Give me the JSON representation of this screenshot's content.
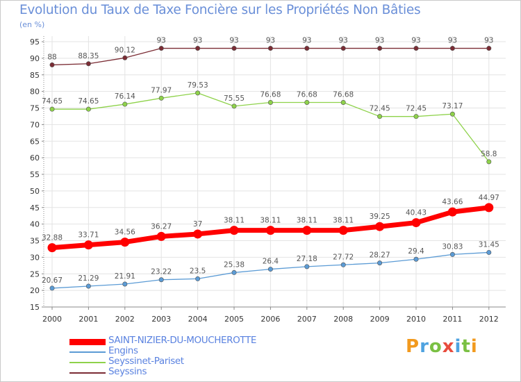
{
  "chart_data": {
    "type": "line",
    "title": "Evolution du Taux de Taxe Foncière sur les Propriétés Non Bâties",
    "subtitle": "(en %)",
    "xlabel": "",
    "ylabel": "",
    "x": [
      2000,
      2001,
      2002,
      2003,
      2004,
      2005,
      2006,
      2007,
      2008,
      2009,
      2010,
      2011,
      2012
    ],
    "ylim": [
      15,
      95
    ],
    "yticks": [
      15,
      20,
      25,
      30,
      35,
      40,
      45,
      50,
      55,
      60,
      65,
      70,
      75,
      80,
      85,
      90,
      95
    ],
    "grid": true,
    "legend_position": "bottom-left",
    "series": [
      {
        "name": "SAINT-NIZIER-DU-MOUCHEROTTE",
        "color": "#ff0000",
        "values": [
          32.88,
          33.71,
          34.56,
          36.27,
          37,
          38.11,
          38.11,
          38.11,
          38.11,
          39.25,
          40.43,
          43.66,
          44.97
        ],
        "labels": [
          "32.88",
          "33.71",
          "34.56",
          "36.27",
          "37",
          "38.11",
          "38.11",
          "38.11",
          "38.11",
          "39.25",
          "40.43",
          "43.66",
          "44.97"
        ]
      },
      {
        "name": "Engins",
        "color": "#5b9bd5",
        "values": [
          20.67,
          21.29,
          21.91,
          23.22,
          23.5,
          25.38,
          26.4,
          27.18,
          27.72,
          28.27,
          29.4,
          30.83,
          31.45
        ],
        "labels": [
          "20.67",
          "21.29",
          "21.91",
          "23.22",
          "23.5",
          "25.38",
          "26.4",
          "27.18",
          "27.72",
          "28.27",
          "29.4",
          "30.83",
          "31.45"
        ]
      },
      {
        "name": "Seyssinet-Pariset",
        "color": "#8ed24a",
        "values": [
          74.65,
          74.65,
          76.14,
          77.97,
          79.53,
          75.55,
          76.68,
          76.68,
          76.68,
          72.45,
          72.45,
          73.17,
          58.8
        ],
        "labels": [
          "74.65",
          "74.65",
          "76.14",
          "77.97",
          "79.53",
          "75.55",
          "76.68",
          "76.68",
          "76.68",
          "72.45",
          "72.45",
          "73.17",
          "58.8"
        ]
      },
      {
        "name": "Seyssins",
        "color": "#7b2c34",
        "values": [
          88,
          88.35,
          90.12,
          93,
          93,
          93,
          93,
          93,
          93,
          93,
          93,
          93,
          93
        ],
        "labels": [
          "88",
          "88.35",
          "90.12",
          "93",
          "93",
          "93",
          "93",
          "93",
          "93",
          "93",
          "93",
          "93",
          "93"
        ]
      }
    ]
  },
  "logo": {
    "letters": [
      "P",
      "r",
      "o",
      "x",
      "i",
      "t",
      "i"
    ]
  }
}
